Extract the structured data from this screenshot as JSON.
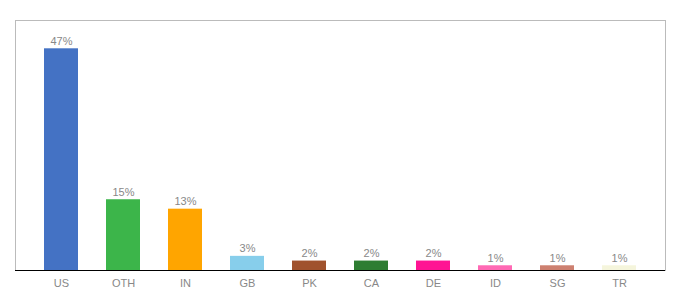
{
  "chart_data": {
    "type": "bar",
    "categories": [
      "US",
      "OTH",
      "IN",
      "GB",
      "PK",
      "CA",
      "DE",
      "ID",
      "SG",
      "TR"
    ],
    "values": [
      47,
      15,
      13,
      3,
      2,
      2,
      2,
      1,
      1,
      1
    ],
    "value_labels": [
      "47%",
      "15%",
      "13%",
      "3%",
      "2%",
      "2%",
      "2%",
      "1%",
      "1%",
      "1%"
    ],
    "colors": [
      "#4472C4",
      "#3CB54A",
      "#FFA500",
      "#87CEEB",
      "#A0522D",
      "#2E7D32",
      "#FF1493",
      "#FF69B4",
      "#CD8070",
      "#F5F5DC"
    ],
    "ylim": [
      0,
      53
    ],
    "data_labels": true,
    "tick_labels": "x",
    "grid": false
  }
}
